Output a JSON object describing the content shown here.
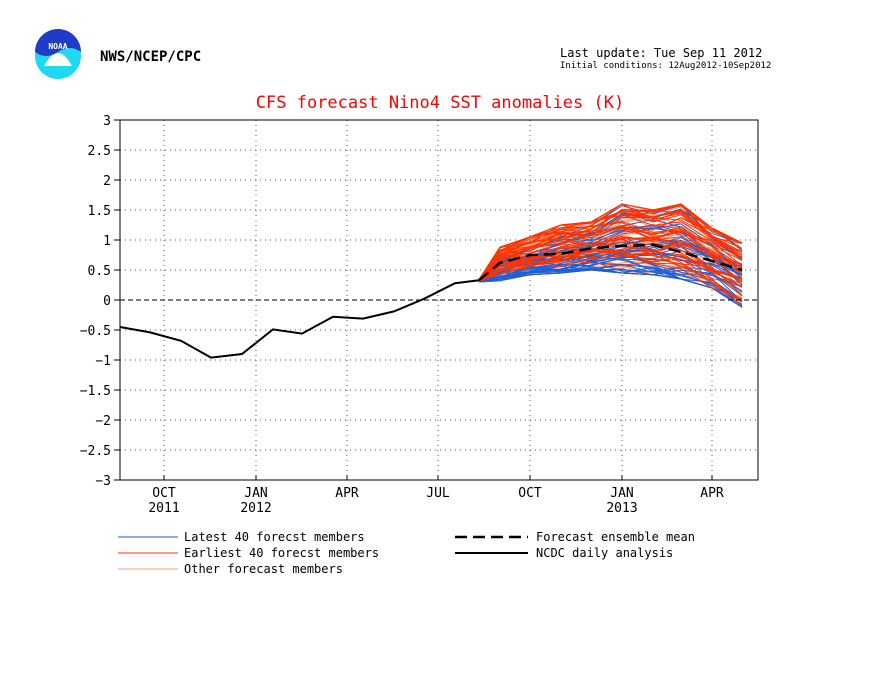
{
  "header": {
    "agency": "NWS/NCEP/CPC",
    "last_update": "Last update: Tue Sep 11 2012",
    "initial_conditions": "Initial conditions: 12Aug2012-10Sep2012",
    "logo_text": "NOAA"
  },
  "colors": {
    "title": "#ff0000",
    "latest": "#1f5fd6",
    "earliest": "#ff3300",
    "other": "#f0a080",
    "observed": "#000000",
    "mean": "#000000",
    "logo_blue": "#1e3cc8",
    "logo_cyan": "#20d8f0"
  },
  "chart_data": {
    "type": "line",
    "title": "CFS forecast Nino4 SST anomalies (K)",
    "ylim": [
      -3,
      3
    ],
    "yticks": [
      -3,
      -2.5,
      -2,
      -1.5,
      -1,
      -0.5,
      0,
      0.5,
      1,
      1.5,
      2,
      2.5,
      3
    ],
    "ytick_labels": [
      "−3",
      "−2.5",
      "−2",
      "−1.5",
      "−1",
      "−0.5",
      "0",
      "0.5",
      "1",
      "1.5",
      "2",
      "2.5",
      "3"
    ],
    "xlim": [
      "2011-09-01",
      "2013-05-31"
    ],
    "xticks": [
      {
        "date": "2011-10-15",
        "label": "OCT",
        "year": "2011"
      },
      {
        "date": "2012-01-15",
        "label": "JAN",
        "year": "2012"
      },
      {
        "date": "2012-04-15",
        "label": "APR",
        "year": ""
      },
      {
        "date": "2012-07-15",
        "label": "JUL",
        "year": ""
      },
      {
        "date": "2012-10-15",
        "label": "OCT",
        "year": ""
      },
      {
        "date": "2013-01-15",
        "label": "JAN",
        "year": "2013"
      },
      {
        "date": "2013-04-15",
        "label": "APR",
        "year": ""
      }
    ],
    "grid": true,
    "observed": {
      "name": "NCDC daily analysis",
      "x": [
        "2011-09-01",
        "2011-10-01",
        "2011-11-01",
        "2011-12-01",
        "2012-01-01",
        "2012-02-01",
        "2012-03-01",
        "2012-04-01",
        "2012-05-01",
        "2012-06-01",
        "2012-07-01",
        "2012-08-01",
        "2012-08-25"
      ],
      "values": [
        -0.45,
        -0.54,
        -0.68,
        -0.96,
        -0.9,
        -0.49,
        -0.56,
        -0.28,
        -0.31,
        -0.19,
        0.02,
        0.28,
        0.33
      ]
    },
    "ensemble_mean": {
      "name": "Forecast ensemble mean",
      "x": [
        "2012-08-25",
        "2012-09-15",
        "2012-10-15",
        "2012-11-15",
        "2012-12-15",
        "2013-01-15",
        "2013-02-15",
        "2013-03-15",
        "2013-04-15",
        "2013-05-15"
      ],
      "values": [
        0.33,
        0.62,
        0.75,
        0.77,
        0.86,
        0.9,
        0.92,
        0.8,
        0.65,
        0.5
      ]
    },
    "member_envelope": {
      "x": [
        "2012-08-25",
        "2012-09-15",
        "2012-10-15",
        "2012-11-15",
        "2012-12-15",
        "2013-01-15",
        "2013-02-15",
        "2013-03-15",
        "2013-04-15",
        "2013-05-15"
      ],
      "min": [
        0.3,
        0.32,
        0.42,
        0.45,
        0.5,
        0.45,
        0.42,
        0.35,
        0.2,
        -0.12
      ],
      "max": [
        0.34,
        0.88,
        1.05,
        1.25,
        1.3,
        1.6,
        1.5,
        1.6,
        1.2,
        0.95
      ]
    },
    "legend": [
      {
        "label": "Latest 40 forecst members",
        "style": "latest"
      },
      {
        "label": "Earliest 40 forecst members",
        "style": "earliest"
      },
      {
        "label": "Other forecast members",
        "style": "other"
      },
      {
        "label": "Forecast ensemble mean",
        "style": "mean"
      },
      {
        "label": "NCDC daily analysis",
        "style": "observed"
      }
    ]
  }
}
